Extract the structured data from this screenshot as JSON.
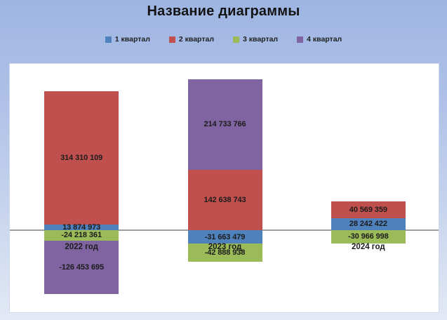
{
  "chart_data": {
    "type": "bar",
    "subtype": "stacked-with-negatives",
    "title": "Название диаграммы",
    "categories": [
      "2022 год",
      "2023 год",
      "2024 год"
    ],
    "series": [
      {
        "name": "1 квартал",
        "color": "#4F81BD",
        "values": [
          13874973,
          -31663479,
          28242422
        ]
      },
      {
        "name": "2 квартал",
        "color": "#C0504D",
        "values": [
          314310109,
          142638743,
          40569359
        ]
      },
      {
        "name": "3 квартал",
        "color": "#9BBB59",
        "values": [
          -24218361,
          -42888938,
          -30966998
        ]
      },
      {
        "name": "4 квартал",
        "color": "#8064A2",
        "values": [
          -126453695,
          214733766,
          null
        ]
      }
    ],
    "data_labels": [
      [
        "13 874 973",
        "-31 663 479",
        "28 242 422"
      ],
      [
        "314 310 109",
        "142 638 743",
        "40 569 359"
      ],
      [
        "-24 218 361",
        "-42 888 938",
        "-30 966 998"
      ],
      [
        "-126 453 695",
        "214 733 766",
        null
      ]
    ],
    "legend_position": "top",
    "grid": false,
    "zero_line": true,
    "ylim": [
      -200000000,
      400000000
    ]
  },
  "style": {
    "axis_line_color": "#9d9d9d",
    "plot_bg": "#ffffff",
    "page_bg_top": "#9eb5e2",
    "page_bg_bottom": "#e3e9f5",
    "label_color": "#1c1c1c"
  }
}
